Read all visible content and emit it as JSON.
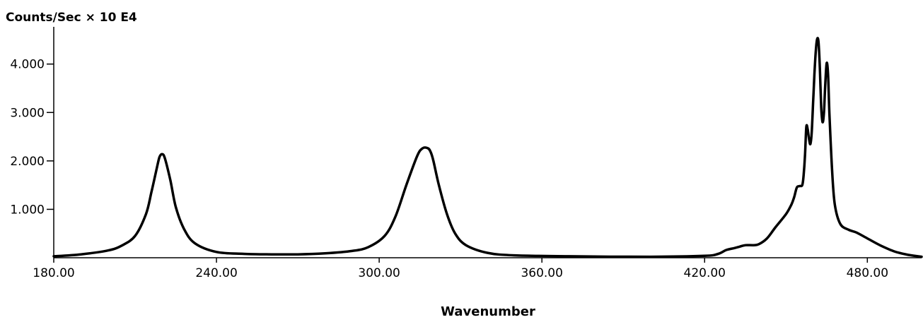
{
  "chart_data": {
    "type": "line",
    "title": "",
    "xlabel": "Wavenumber",
    "ylabel": "Counts/Sec × 10 E4",
    "xlim": [
      180,
      500
    ],
    "ylim": [
      0,
      4.9
    ],
    "x_ticks": [
      180,
      240,
      300,
      360,
      420,
      480
    ],
    "x_tick_labels": [
      "180.00",
      "240.00",
      "300.00",
      "360.00",
      "420.00",
      "480.00"
    ],
    "y_ticks": [
      1,
      2,
      3,
      4
    ],
    "y_tick_labels": [
      "1.000",
      "2.000",
      "3.000",
      "4.000"
    ],
    "grid": false,
    "legend": "none",
    "line_color": "#000000",
    "series": [
      {
        "x": [
          180,
          190,
          200,
          205,
          210,
          214,
          216,
          218,
          219,
          220,
          221,
          223,
          225,
          228,
          232,
          240,
          250,
          260,
          270,
          280,
          290,
          296,
          302,
          306,
          310,
          314,
          316,
          318,
          319,
          320,
          322,
          325,
          328,
          332,
          340,
          350,
          370,
          400,
          420,
          425,
          428,
          431,
          433,
          435,
          438,
          440,
          443,
          446,
          450,
          452,
          453,
          454,
          455,
          456,
          456.5,
          457,
          457.5,
          458,
          458.5,
          459,
          459.5,
          460,
          460.5,
          461,
          461.5,
          462,
          462.5,
          463,
          463.5,
          464,
          464.5,
          465,
          465.5,
          466,
          467,
          468,
          470,
          473,
          476,
          480,
          485,
          490,
          495,
          500
        ],
        "y": [
          0.03,
          0.07,
          0.15,
          0.25,
          0.45,
          0.9,
          1.35,
          1.85,
          2.08,
          2.14,
          2.05,
          1.6,
          1.05,
          0.6,
          0.3,
          0.12,
          0.08,
          0.07,
          0.07,
          0.09,
          0.14,
          0.22,
          0.45,
          0.85,
          1.5,
          2.1,
          2.26,
          2.26,
          2.18,
          2.0,
          1.5,
          0.9,
          0.5,
          0.26,
          0.1,
          0.05,
          0.03,
          0.02,
          0.04,
          0.08,
          0.16,
          0.2,
          0.23,
          0.26,
          0.26,
          0.28,
          0.4,
          0.62,
          0.9,
          1.1,
          1.25,
          1.45,
          1.48,
          1.5,
          1.7,
          2.1,
          2.7,
          2.65,
          2.45,
          2.35,
          2.6,
          3.2,
          3.8,
          4.28,
          4.52,
          4.45,
          3.9,
          3.1,
          2.8,
          3.0,
          3.6,
          4.02,
          3.8,
          3.0,
          1.8,
          1.1,
          0.7,
          0.58,
          0.52,
          0.4,
          0.25,
          0.13,
          0.06,
          0.02
        ]
      }
    ]
  }
}
